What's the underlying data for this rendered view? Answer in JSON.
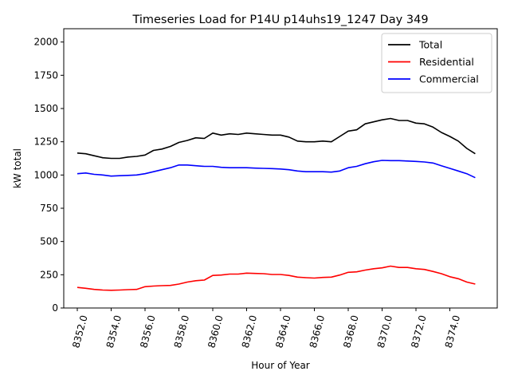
{
  "chart_data": {
    "type": "line",
    "title": "Timeseries Load for P14U p14uhs19_1247  Day 349",
    "xlabel": "Hour of Year",
    "ylabel": "kW total",
    "xlim": [
      8351.2,
      8376.8
    ],
    "ylim": [
      0,
      2100
    ],
    "xticks": [
      8352,
      8354,
      8356,
      8358,
      8360,
      8362,
      8364,
      8366,
      8368,
      8370,
      8372,
      8374
    ],
    "xtick_labels": [
      "8352.0",
      "8354.0",
      "8356.0",
      "8358.0",
      "8360.0",
      "8362.0",
      "8364.0",
      "8366.0",
      "8368.0",
      "8370.0",
      "8372.0",
      "8374.0"
    ],
    "yticks": [
      0,
      250,
      500,
      750,
      1000,
      1250,
      1500,
      1750,
      2000
    ],
    "ytick_labels": [
      "0",
      "250",
      "500",
      "750",
      "1000",
      "1250",
      "1500",
      "1750",
      "2000"
    ],
    "legend_position": "top-right",
    "grid": false,
    "series": [
      {
        "name": "Total",
        "color": "#000000",
        "x": [
          8352,
          8352.5,
          8353,
          8353.5,
          8354,
          8354.5,
          8355,
          8355.5,
          8356,
          8356.5,
          8357,
          8357.5,
          8358,
          8358.5,
          8359,
          8359.5,
          8360,
          8360.5,
          8361,
          8361.5,
          8362,
          8362.5,
          8363,
          8363.5,
          8364,
          8364.5,
          8365,
          8365.5,
          8366,
          8366.5,
          8367,
          8367.5,
          8368,
          8368.5,
          8369,
          8369.5,
          8370,
          8370.5,
          8371,
          8371.5,
          8372,
          8372.5,
          8373,
          8373.5,
          8374,
          8374.5,
          8375,
          8375.5
        ],
        "values": [
          1165,
          1160,
          1145,
          1130,
          1125,
          1125,
          1135,
          1140,
          1150,
          1185,
          1195,
          1215,
          1245,
          1260,
          1280,
          1275,
          1315,
          1300,
          1310,
          1305,
          1315,
          1310,
          1305,
          1300,
          1300,
          1285,
          1255,
          1250,
          1250,
          1255,
          1250,
          1290,
          1330,
          1340,
          1385,
          1400,
          1415,
          1425,
          1410,
          1410,
          1390,
          1385,
          1360,
          1320,
          1290,
          1255,
          1200,
          1160
        ]
      },
      {
        "name": "Residential",
        "color": "#ff0000",
        "x": [
          8352,
          8352.5,
          8353,
          8353.5,
          8354,
          8354.5,
          8355,
          8355.5,
          8356,
          8356.5,
          8357,
          8357.5,
          8358,
          8358.5,
          8359,
          8359.5,
          8360,
          8360.5,
          8361,
          8361.5,
          8362,
          8362.5,
          8363,
          8363.5,
          8364,
          8364.5,
          8365,
          8365.5,
          8366,
          8366.5,
          8367,
          8367.5,
          8368,
          8368.5,
          8369,
          8369.5,
          8370,
          8370.5,
          8371,
          8371.5,
          8372,
          8372.5,
          8373,
          8373.5,
          8374,
          8374.5,
          8375,
          8375.5
        ],
        "values": [
          155,
          148,
          140,
          135,
          133,
          135,
          138,
          140,
          160,
          165,
          168,
          170,
          180,
          195,
          205,
          210,
          245,
          248,
          255,
          255,
          262,
          260,
          258,
          252,
          252,
          245,
          232,
          228,
          225,
          230,
          232,
          248,
          268,
          272,
          285,
          295,
          302,
          315,
          305,
          305,
          295,
          290,
          275,
          258,
          235,
          220,
          195,
          180
        ]
      },
      {
        "name": "Commercial",
        "color": "#0000ff",
        "x": [
          8352,
          8352.5,
          8353,
          8353.5,
          8354,
          8354.5,
          8355,
          8355.5,
          8356,
          8356.5,
          8357,
          8357.5,
          8358,
          8358.5,
          8359,
          8359.5,
          8360,
          8360.5,
          8361,
          8361.5,
          8362,
          8362.5,
          8363,
          8363.5,
          8364,
          8364.5,
          8365,
          8365.5,
          8366,
          8366.5,
          8367,
          8367.5,
          8368,
          8368.5,
          8369,
          8369.5,
          8370,
          8370.5,
          8371,
          8371.5,
          8372,
          8372.5,
          8373,
          8373.5,
          8374,
          8374.5,
          8375,
          8375.5
        ],
        "values": [
          1010,
          1015,
          1005,
          1000,
          992,
          995,
          997,
          1000,
          1010,
          1025,
          1040,
          1055,
          1075,
          1075,
          1070,
          1065,
          1065,
          1058,
          1055,
          1055,
          1055,
          1052,
          1050,
          1048,
          1045,
          1040,
          1030,
          1025,
          1025,
          1025,
          1022,
          1030,
          1055,
          1065,
          1085,
          1100,
          1110,
          1108,
          1108,
          1105,
          1102,
          1098,
          1090,
          1070,
          1050,
          1030,
          1010,
          980
        ]
      }
    ]
  }
}
